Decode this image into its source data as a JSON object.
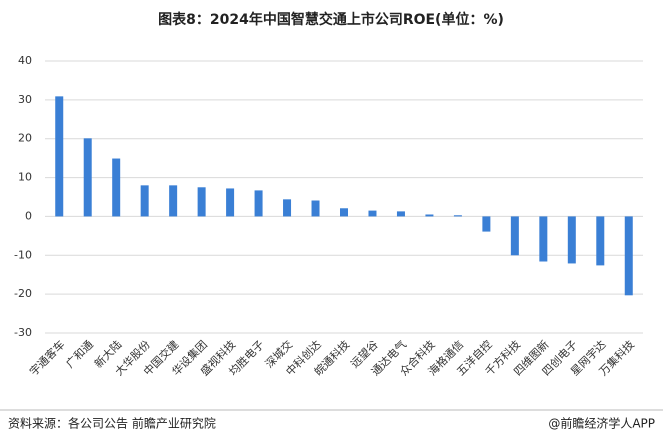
{
  "chart_data": {
    "type": "bar",
    "title": "图表8：2024年中国智慧交通上市公司ROE(单位：%)",
    "categories": [
      "宇通客车",
      "广和通",
      "新大陆",
      "大华股份",
      "中国交建",
      "华设集团",
      "盛视科技",
      "均胜电子",
      "深城交",
      "中科创达",
      "皖通科技",
      "远望谷",
      "通达电气",
      "众合科技",
      "海格通信",
      "五洋自控",
      "千方科技",
      "四维图新",
      "四创电子",
      "星网宇达",
      "万集科技"
    ],
    "values": [
      30.9,
      20.1,
      14.9,
      8.0,
      8.0,
      7.5,
      7.2,
      6.7,
      4.4,
      4.1,
      2.1,
      1.5,
      1.3,
      0.5,
      0.3,
      -3.9,
      -10.0,
      -11.6,
      -12.1,
      -12.6,
      -20.3
    ],
    "color": "#3a7fd5",
    "ylim": [
      -30,
      40
    ],
    "yticks": [
      -30,
      -20,
      -10,
      0,
      10,
      20,
      30,
      40
    ],
    "grid": true,
    "source": "资料来源：各公司公告 前瞻产业研究院",
    "brand": "@前瞻经济学人APP"
  }
}
